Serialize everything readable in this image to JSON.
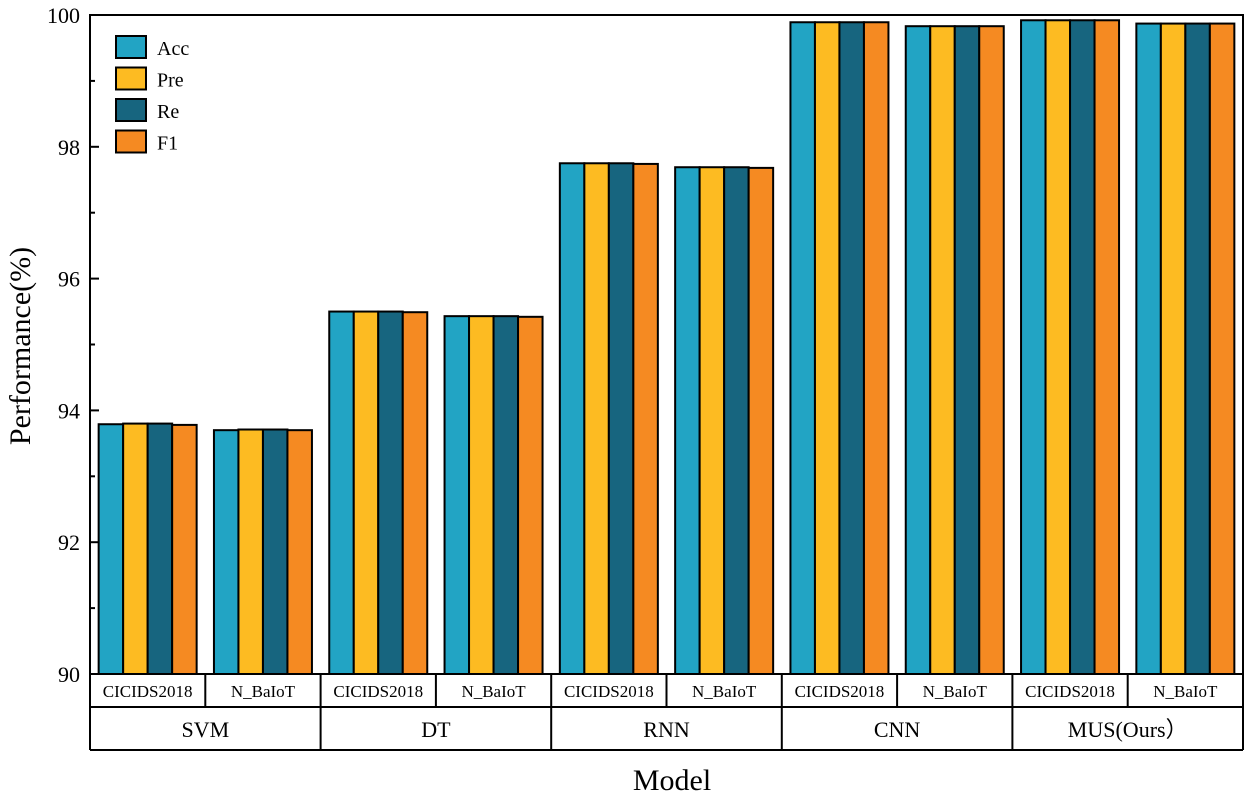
{
  "chart_data": {
    "type": "bar",
    "ylabel": "Performance(%)",
    "xlabel": "Model",
    "ylim": [
      90,
      100
    ],
    "yticks": [
      90,
      92,
      94,
      96,
      98,
      100
    ],
    "grid": false,
    "legend_position": "top-left",
    "groups": [
      "SVM",
      "DT",
      "RNN",
      "CNN",
      "MUS(Ours）"
    ],
    "categories": [
      "CICIDS2018",
      "N_BaIoT",
      "CICIDS2018",
      "N_BaIoT",
      "CICIDS2018",
      "N_BaIoT",
      "CICIDS2018",
      "N_BaIoT",
      "CICIDS2018",
      "N_BaIoT"
    ],
    "series": [
      {
        "name": "Acc",
        "color": "#22A4C4",
        "values": [
          93.79,
          93.7,
          95.5,
          95.43,
          97.75,
          97.69,
          99.89,
          99.83,
          99.92,
          99.87
        ]
      },
      {
        "name": "Pre",
        "color": "#FDBB22",
        "values": [
          93.8,
          93.71,
          95.5,
          95.43,
          97.75,
          97.69,
          99.89,
          99.83,
          99.92,
          99.87
        ]
      },
      {
        "name": "Re",
        "color": "#17657F",
        "values": [
          93.8,
          93.71,
          95.5,
          95.43,
          97.75,
          97.69,
          99.89,
          99.83,
          99.92,
          99.87
        ]
      },
      {
        "name": "F1",
        "color": "#F58A22",
        "values": [
          93.78,
          93.7,
          95.49,
          95.42,
          97.74,
          97.68,
          99.89,
          99.83,
          99.92,
          99.87
        ]
      }
    ]
  }
}
